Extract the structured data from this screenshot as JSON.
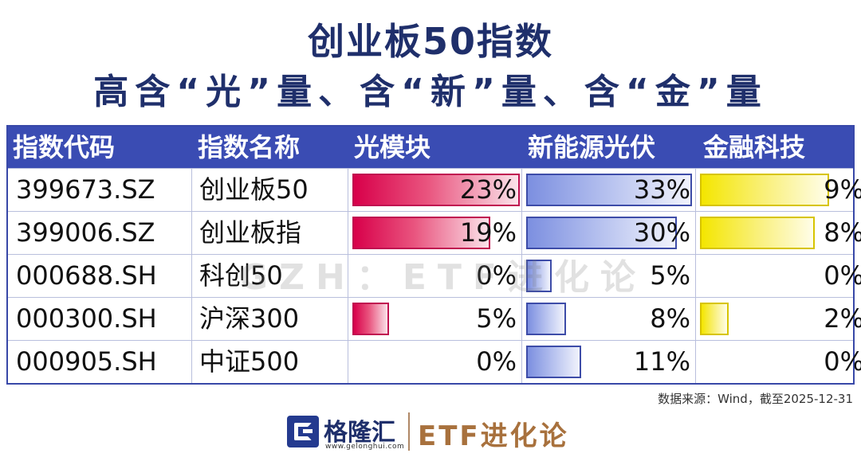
{
  "title_line1": "创业板50指数",
  "title_line2": "高含“光”量、含“新”量、含“金”量",
  "chart_data": {
    "type": "table",
    "headers": [
      "指数代码",
      "指数名称",
      "光模块",
      "新能源光伏",
      "金融科技"
    ],
    "rows": [
      {
        "code": "399673.SZ",
        "name": "创业板50",
        "guang": 23,
        "xin": 33,
        "jin": 9,
        "guang_label": "23%",
        "xin_label": "33%",
        "jin_label": "9%"
      },
      {
        "code": "399006.SZ",
        "name": "创业板指",
        "guang": 19,
        "xin": 30,
        "jin": 8,
        "guang_label": "19%",
        "xin_label": "30%",
        "jin_label": "8%"
      },
      {
        "code": "000688.SH",
        "name": "科创50",
        "guang": 0,
        "xin": 5,
        "jin": 0,
        "guang_label": "0%",
        "xin_label": "5%",
        "jin_label": "0%"
      },
      {
        "code": "000300.SH",
        "name": "沪深300",
        "guang": 5,
        "xin": 8,
        "jin": 2,
        "guang_label": "5%",
        "xin_label": "8%",
        "jin_label": "2%"
      },
      {
        "code": "000905.SH",
        "name": "中证500",
        "guang": 0,
        "xin": 11,
        "jin": 0,
        "guang_label": "0%",
        "xin_label": "11%",
        "jin_label": "0%"
      }
    ],
    "scales": {
      "guang_max": 23,
      "xin_max": 33,
      "jin_max": 9
    }
  },
  "colors": {
    "header_bg": "#3a4cb3",
    "title": "#1f2f6b",
    "guang": "#d8004a",
    "xin": "#7c8fe0",
    "jin": "#f4e600"
  },
  "source": "数据来源：Wind，截至2025-12-31",
  "watermark": "GZH：ETF进化论",
  "footer": {
    "logo_name": "格隆汇",
    "logo_url": "www.gelonghui.com",
    "brand": "ETF进化论",
    "logo_icon": "gelonghui-g-icon"
  }
}
